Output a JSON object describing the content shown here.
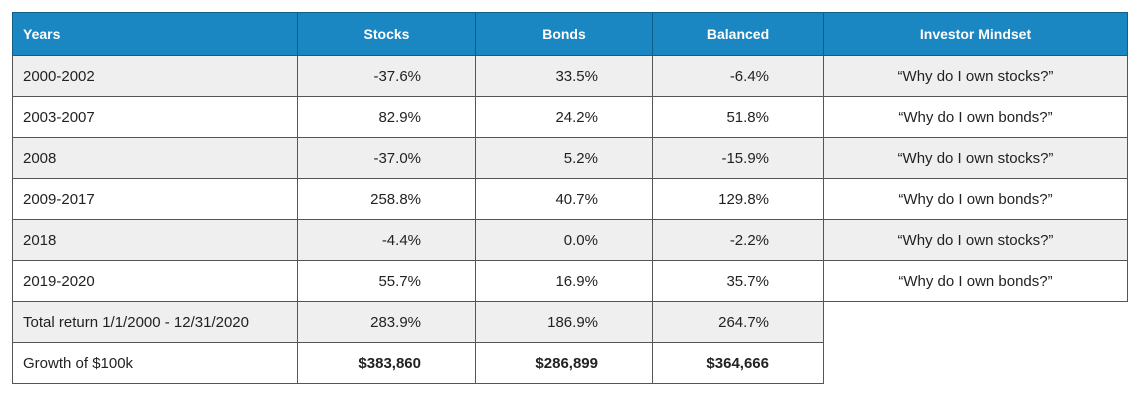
{
  "chart_data": {
    "type": "table",
    "columns": [
      "Years",
      "Stocks",
      "Bonds",
      "Balanced",
      "Investor Mindset"
    ],
    "rows": [
      {
        "years": "2000-2002",
        "stocks": "-37.6%",
        "bonds": "33.5%",
        "balanced": "-6.4%",
        "mindset": "“Why do I own stocks?”"
      },
      {
        "years": "2003-2007",
        "stocks": "82.9%",
        "bonds": "24.2%",
        "balanced": "51.8%",
        "mindset": "“Why do I own bonds?”"
      },
      {
        "years": "2008",
        "stocks": "-37.0%",
        "bonds": "5.2%",
        "balanced": "-15.9%",
        "mindset": "“Why do I own stocks?”"
      },
      {
        "years": "2009-2017",
        "stocks": "258.8%",
        "bonds": "40.7%",
        "balanced": "129.8%",
        "mindset": "“Why do I own bonds?”"
      },
      {
        "years": "2018",
        "stocks": "-4.4%",
        "bonds": "0.0%",
        "balanced": "-2.2%",
        "mindset": "“Why do I own stocks?”"
      },
      {
        "years": "2019-2020",
        "stocks": "55.7%",
        "bonds": "16.9%",
        "balanced": "35.7%",
        "mindset": "“Why do I own bonds?”"
      },
      {
        "years": "Total return 1/1/2000 - 12/31/2020",
        "stocks": "283.9%",
        "bonds": "186.9%",
        "balanced": "264.7%",
        "mindset": ""
      },
      {
        "years": "Growth of $100k",
        "stocks": "$383,860",
        "bonds": "$286,899",
        "balanced": "$364,666",
        "mindset": ""
      }
    ],
    "colors": {
      "header_bg": "#1a86c2",
      "header_text": "#ffffff",
      "row_shade": "#efefef"
    }
  }
}
